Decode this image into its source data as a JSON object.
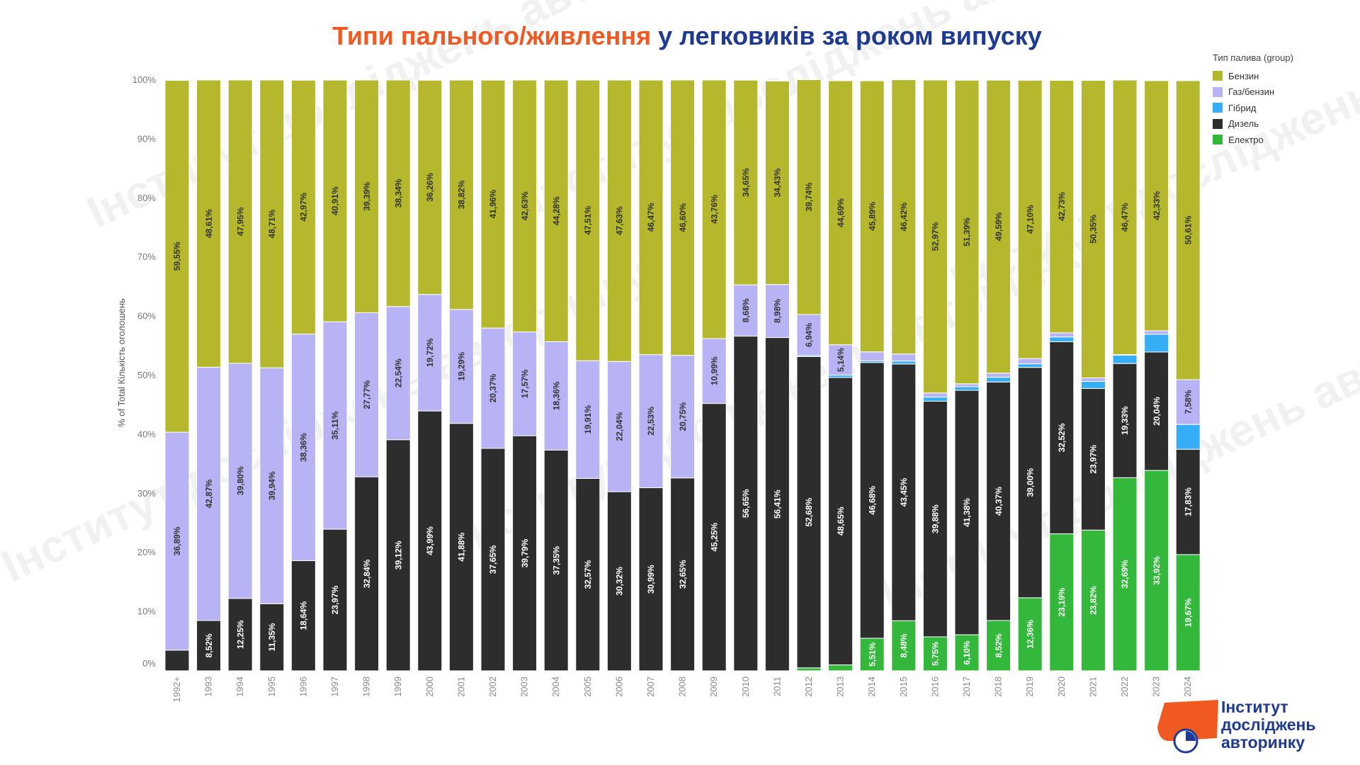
{
  "title": {
    "part1": "Типи пального/живлення",
    "part2": "у легковиків за роком випуску"
  },
  "legend": {
    "title": "Тип палива (group)",
    "items": [
      {
        "label": "Бензин",
        "color": "#b5b82c"
      },
      {
        "label": "Газ/бензин",
        "color": "#b8b3f5"
      },
      {
        "label": "Гібрид",
        "color": "#36aef5"
      },
      {
        "label": "Дизель",
        "color": "#2d2d2d"
      },
      {
        "label": "Електро",
        "color": "#34b83c"
      }
    ]
  },
  "logo": {
    "line1": "Інститут",
    "line2": "досліджень",
    "line3": "авторинку"
  },
  "watermark": "Інститут досліджень авторинку",
  "chart_data": {
    "type": "bar",
    "stacked": true,
    "ylabel": "% of Total Кількість оголошень",
    "xlabel": "",
    "ylim": [
      0,
      100
    ],
    "yticks": [
      "0%",
      "10%",
      "20%",
      "30%",
      "40%",
      "50%",
      "60%",
      "70%",
      "80%",
      "90%",
      "100%"
    ],
    "grid": false,
    "legend_position": "top-right",
    "categories": [
      "1992+",
      "1993",
      "1994",
      "1995",
      "1996",
      "1997",
      "1998",
      "1999",
      "2000",
      "2001",
      "2002",
      "2003",
      "2004",
      "2005",
      "2006",
      "2007",
      "2008",
      "2009",
      "2010",
      "2011",
      "2012",
      "2013",
      "2014",
      "2015",
      "2016",
      "2017",
      "2018",
      "2019",
      "2020",
      "2021",
      "2022",
      "2023",
      "2024"
    ],
    "series": [
      {
        "name": "Електро",
        "color": "#34b83c",
        "values": [
          0,
          0,
          0,
          0,
          0,
          0,
          0,
          0,
          0,
          0,
          0,
          0,
          0,
          0,
          0,
          0,
          0,
          0,
          0,
          0,
          0.5,
          1.0,
          5.51,
          8.48,
          5.75,
          6.1,
          8.52,
          12.36,
          23.19,
          23.82,
          32.69,
          33.92,
          19.67
        ],
        "labels": [
          "",
          "",
          "",
          "",
          "",
          "",
          "",
          "",
          "",
          "",
          "",
          "",
          "",
          "",
          "",
          "",
          "",
          "",
          "",
          "",
          "",
          "",
          "5,51%",
          "8,48%",
          "5,75%",
          "6,10%",
          "8,52%",
          "12,36%",
          "23,19%",
          "23,82%",
          "32,69%",
          "33,92%",
          "19,67%"
        ]
      },
      {
        "name": "Дизель",
        "color": "#2d2d2d",
        "values": [
          3.5,
          8.52,
          12.25,
          11.35,
          18.64,
          23.97,
          32.84,
          39.12,
          43.99,
          41.88,
          37.65,
          39.79,
          37.35,
          32.57,
          30.32,
          30.99,
          32.65,
          45.25,
          56.65,
          56.41,
          52.68,
          48.65,
          46.68,
          43.45,
          39.88,
          41.38,
          40.37,
          39.0,
          32.52,
          23.97,
          19.33,
          20.04,
          17.83
        ],
        "labels": [
          "",
          "8,52%",
          "12,25%",
          "11,35%",
          "18,64%",
          "23,97%",
          "32,84%",
          "39,12%",
          "43,99%",
          "41,88%",
          "37,65%",
          "39,79%",
          "37,35%",
          "32,57%",
          "30,32%",
          "30,99%",
          "32,65%",
          "45,25%",
          "56,65%",
          "56,41%",
          "52,68%",
          "48,65%",
          "46,68%",
          "43,45%",
          "39,88%",
          "41,38%",
          "40,37%",
          "39,00%",
          "32,52%",
          "23,97%",
          "19,33%",
          "20,04%",
          "17,83%"
        ]
      },
      {
        "name": "Гібрид",
        "color": "#36aef5",
        "values": [
          0,
          0,
          0,
          0,
          0,
          0,
          0,
          0,
          0,
          0,
          0,
          0,
          0,
          0,
          0,
          0,
          0,
          0,
          0,
          0,
          0.2,
          0.4,
          0.3,
          0.5,
          0.7,
          0.6,
          0.8,
          0.6,
          0.8,
          1.2,
          1.4,
          3.0,
          4.2
        ],
        "labels": [
          "",
          "",
          "",
          "",
          "",
          "",
          "",
          "",
          "",
          "",
          "",
          "",
          "",
          "",
          "",
          "",
          "",
          "",
          "",
          "",
          "",
          "",
          "",
          "",
          "",
          "",
          "",
          "",
          "",
          "",
          "",
          "",
          ""
        ]
      },
      {
        "name": "Газ/бензин",
        "color": "#b8b3f5",
        "values": [
          36.89,
          42.87,
          39.8,
          39.94,
          38.36,
          35.11,
          27.77,
          22.54,
          19.72,
          19.29,
          20.37,
          17.57,
          18.36,
          19.91,
          22.04,
          22.53,
          20.75,
          10.99,
          8.68,
          8.98,
          6.94,
          5.14,
          1.5,
          1.2,
          0.7,
          0.5,
          0.7,
          0.9,
          0.7,
          0.6,
          0.1,
          0.6,
          7.58
        ],
        "labels": [
          "36,89%",
          "42,87%",
          "39,80%",
          "39,94%",
          "38,36%",
          "35,11%",
          "27,77%",
          "22,54%",
          "19,72%",
          "19,29%",
          "20,37%",
          "17,57%",
          "18,36%",
          "19,91%",
          "22,04%",
          "22,53%",
          "20,75%",
          "10,99%",
          "8,68%",
          "8,98%",
          "6,94%",
          "5,14%",
          "",
          "",
          "",
          "",
          "",
          "",
          "",
          "",
          "",
          "",
          "7,58%"
        ]
      },
      {
        "name": "Бензин",
        "color": "#b5b82c",
        "values": [
          59.55,
          48.61,
          47.95,
          48.71,
          42.97,
          40.91,
          39.39,
          38.34,
          36.26,
          38.82,
          41.96,
          42.63,
          44.28,
          47.51,
          47.63,
          46.47,
          46.6,
          43.76,
          34.65,
          34.43,
          39.74,
          44.69,
          45.89,
          46.42,
          52.97,
          51.39,
          49.59,
          47.1,
          42.73,
          50.35,
          46.47,
          42.33,
          50.61
        ],
        "labels": [
          "59,55%",
          "48,61%",
          "47,95%",
          "48,71%",
          "42,97%",
          "40,91%",
          "39,39%",
          "38,34%",
          "36,26%",
          "38,82%",
          "41,96%",
          "42,63%",
          "44,28%",
          "47,51%",
          "47,63%",
          "46,47%",
          "46,60%",
          "43,76%",
          "34,65%",
          "34,43%",
          "39,74%",
          "44,69%",
          "45,89%",
          "46,42%",
          "52,97%",
          "51,39%",
          "49,59%",
          "47,10%",
          "42,73%",
          "50,35%",
          "46,47%",
          "42,33%",
          "50,61%"
        ]
      }
    ]
  }
}
